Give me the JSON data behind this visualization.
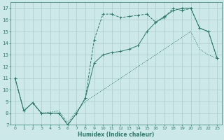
{
  "xlabel": "Humidex (Indice chaleur)",
  "xlim": [
    -0.5,
    23.5
  ],
  "ylim": [
    7,
    17.5
  ],
  "yticks": [
    7,
    8,
    9,
    10,
    11,
    12,
    13,
    14,
    15,
    16,
    17
  ],
  "xticks": [
    0,
    1,
    2,
    3,
    4,
    5,
    6,
    7,
    8,
    9,
    10,
    11,
    12,
    13,
    14,
    15,
    16,
    17,
    18,
    19,
    20,
    21,
    22,
    23
  ],
  "bg_color": "#cce8e8",
  "grid_color": "#aacccc",
  "line_color": "#2a7a6a",
  "line1_x": [
    0,
    1,
    2,
    3,
    4,
    5,
    6,
    7,
    8,
    9,
    10,
    11,
    12,
    13,
    14,
    15,
    16,
    17,
    18,
    19,
    20,
    21,
    22,
    23
  ],
  "line1_y": [
    11,
    8.2,
    8.9,
    8.0,
    8.0,
    8.0,
    7.0,
    8.0,
    9.3,
    14.3,
    16.5,
    16.5,
    16.2,
    16.3,
    16.4,
    16.5,
    15.8,
    16.2,
    17.0,
    16.8,
    17.0,
    15.3,
    15.0,
    12.7
  ],
  "line2_x": [
    0,
    1,
    2,
    3,
    4,
    5,
    6,
    7,
    8,
    9,
    10,
    11,
    12,
    13,
    14,
    15,
    16,
    17,
    18,
    19,
    20,
    21,
    22,
    23
  ],
  "line2_y": [
    11,
    8.2,
    8.9,
    8.0,
    8.0,
    8.0,
    7.0,
    8.0,
    9.3,
    12.3,
    13.0,
    13.2,
    13.3,
    13.5,
    13.8,
    15.0,
    15.8,
    16.3,
    16.8,
    17.0,
    17.0,
    15.3,
    15.0,
    12.7
  ],
  "line3_x": [
    0,
    1,
    2,
    3,
    4,
    5,
    6,
    7,
    8,
    9,
    10,
    11,
    12,
    13,
    14,
    15,
    16,
    17,
    18,
    19,
    20,
    21,
    22,
    23
  ],
  "line3_y": [
    11,
    8.2,
    8.9,
    8.0,
    8.1,
    8.2,
    7.2,
    8.2,
    9.0,
    9.5,
    10.0,
    10.5,
    11.0,
    11.5,
    12.0,
    12.5,
    13.0,
    13.5,
    14.0,
    14.5,
    15.0,
    13.5,
    13.0,
    12.7
  ]
}
